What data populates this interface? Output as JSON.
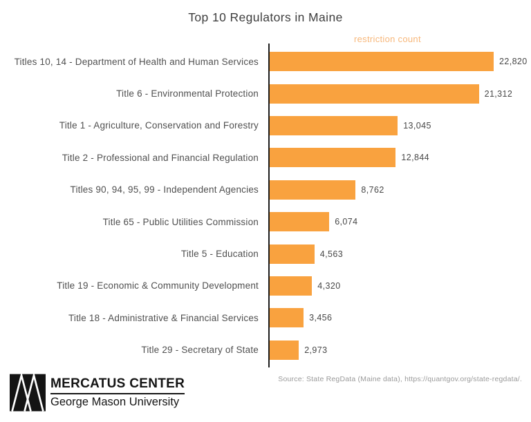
{
  "title": "Top 10 Regulators in Maine",
  "chart_data": {
    "type": "bar",
    "orientation": "horizontal",
    "title": "Top 10 Regulators in Maine",
    "axis_label": "restriction count",
    "categories": [
      "Titles 10, 14 - Department of Health and Human Services",
      "Title 6 - Environmental Protection",
      "Title 1 - Agriculture, Conservation and Forestry",
      "Title 2 - Professional and Financial Regulation",
      "Titles 90, 94, 95, 99 - Independent Agencies",
      "Title 65 - Public Utilities Commission",
      "Title 5 - Education",
      "Title 19 - Economic & Community Development",
      "Title 18 - Administrative & Financial Services",
      "Title 29 - Secretary of State"
    ],
    "values": [
      22820,
      21312,
      13045,
      12844,
      8762,
      6074,
      4563,
      4320,
      3456,
      2973
    ],
    "value_labels": [
      "22,820",
      "21,312",
      "13,045",
      "12,844",
      "8,762",
      "6,074",
      "4,563",
      "4,320",
      "3,456",
      "2,973"
    ],
    "xlim": [
      0,
      22820
    ],
    "grid": "off",
    "legend": "none",
    "bar_color": "#f9a23f",
    "axis_label_color": "#f7b77a"
  },
  "footer": {
    "logo_title": "MERCATUS CENTER",
    "logo_subtitle": "George Mason University",
    "source": "Source: State RegData (Maine data), https://quantgov.org/state-regdata/."
  }
}
